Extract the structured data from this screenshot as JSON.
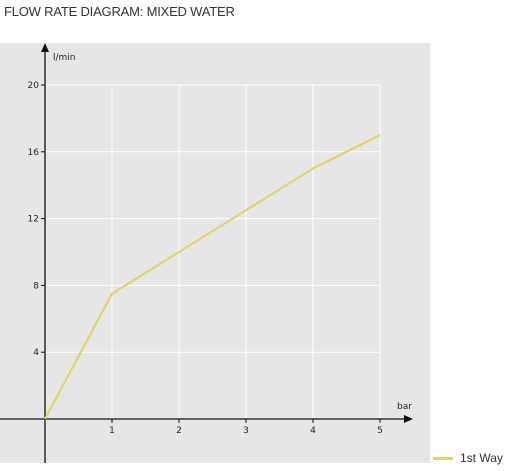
{
  "title": "FLOW RATE DIAGRAM: MIXED WATER",
  "chart_data": {
    "type": "line",
    "title": "FLOW RATE DIAGRAM: MIXED WATER",
    "xlabel": "bar",
    "ylabel": "l/min",
    "xlim": [
      0,
      5
    ],
    "ylim": [
      0,
      20
    ],
    "xticks": [
      1,
      2,
      3,
      4,
      5
    ],
    "yticks": [
      4,
      8,
      12,
      16,
      20
    ],
    "grid": true,
    "legend_position": "bottom-right",
    "series": [
      {
        "name": "1st Way",
        "color": "#ddd56b",
        "x": [
          0,
          1,
          2,
          3,
          4,
          5
        ],
        "y": [
          0,
          7.5,
          10,
          12.5,
          15,
          17
        ]
      }
    ]
  },
  "colors": {
    "plot_background": "#e6e6e6",
    "grid": "#ffffff",
    "axis": "#111111"
  }
}
